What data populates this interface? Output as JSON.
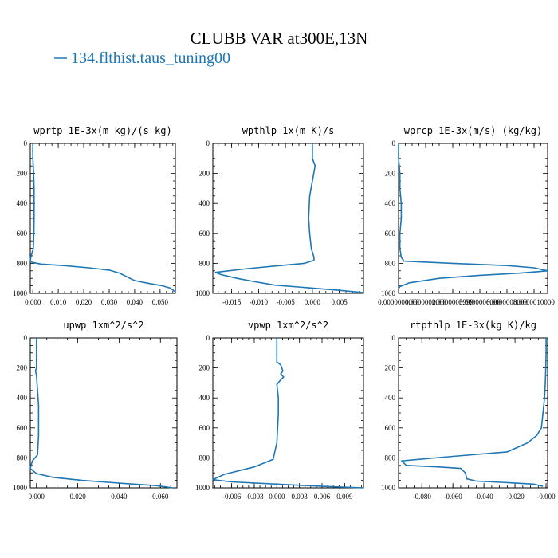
{
  "figure": {
    "title": "CLUBB VAR at300E,13N",
    "legend_label": "134.flthist.taus_tuning00",
    "line_color": "#1f77b4"
  },
  "chart_data": [
    {
      "type": "line",
      "title": "wprtp  1E-3x(m kg)/(s kg)",
      "xlim": [
        -0.001,
        0.056
      ],
      "ylim": [
        1000,
        0
      ],
      "x_ticks": [
        0.0,
        0.01,
        0.02,
        0.03,
        0.04,
        0.05
      ],
      "x_tick_labels": [
        "0.000",
        "0.010",
        "0.020",
        "0.030",
        "0.040",
        "0.050"
      ],
      "y_ticks": [
        0,
        200,
        400,
        600,
        800,
        1000
      ],
      "series": [
        {
          "x": [
            0.0,
            0.0,
            0.0003,
            0.0005,
            0.0005,
            0.0005,
            0.0004,
            0.0002,
            -0.0008,
            -0.001,
            0.003,
            0.012,
            0.022,
            0.03,
            0.034,
            0.037,
            0.04,
            0.046,
            0.051,
            0.054,
            0.056
          ],
          "y": [
            0,
            100,
            200,
            300,
            400,
            500,
            600,
            700,
            760,
            790,
            805,
            815,
            830,
            845,
            865,
            890,
            915,
            935,
            950,
            965,
            990
          ]
        }
      ]
    },
    {
      "type": "line",
      "title": "wpthlp  1x(m K)/s",
      "xlim": [
        -0.0185,
        0.0095
      ],
      "ylim": [
        1000,
        0
      ],
      "x_ticks": [
        -0.015,
        -0.01,
        -0.005,
        0.0,
        0.005
      ],
      "x_tick_labels": [
        "-0.015",
        "-0.010",
        "-0.005",
        "0.000",
        "0.005"
      ],
      "y_ticks": [
        0,
        200,
        400,
        600,
        800,
        1000
      ],
      "series": [
        {
          "x": [
            0.0,
            0.0,
            0.0005,
            0.0,
            -0.0005,
            -0.0007,
            -0.0005,
            -0.0002,
            0.0003,
            0.0003,
            -0.0015,
            -0.006,
            -0.012,
            -0.018,
            -0.017,
            -0.014,
            -0.011,
            -0.007,
            0.0,
            0.005,
            0.0095
          ],
          "y": [
            0,
            100,
            150,
            250,
            350,
            500,
            600,
            700,
            760,
            780,
            800,
            815,
            835,
            860,
            875,
            900,
            920,
            945,
            965,
            980,
            995
          ]
        }
      ]
    },
    {
      "type": "line",
      "title": "wprcp  1E-3x(m/s) (kg/kg)",
      "xlim": [
        0.0,
        1.1e-06
      ],
      "ylim": [
        1000,
        0
      ],
      "x_ticks": [
        0.0,
        2e-07,
        4e-07,
        6e-07,
        8e-07,
        1e-06
      ],
      "x_tick_labels": [
        "0.0000000000",
        "0.0000002000",
        "0.0000003999",
        "0.0000006000",
        "0.0000008000",
        "0.0000010000"
      ],
      "y_ticks": [
        0,
        200,
        400,
        600,
        800,
        1000
      ],
      "series": [
        {
          "x": [
            0.0,
            0.0,
            1e-08,
            1e-08,
            2e-08,
            2e-08,
            1e-08,
            1e-08,
            2e-08,
            4e-08,
            4e-07,
            8e-07,
            1e-06,
            1.1e-06,
            9e-07,
            6e-07,
            3e-07,
            8e-08,
            1e-08,
            0.0
          ],
          "y": [
            0,
            100,
            200,
            300,
            400,
            500,
            600,
            700,
            760,
            785,
            800,
            815,
            830,
            850,
            865,
            880,
            900,
            930,
            955,
            970
          ]
        }
      ]
    },
    {
      "type": "line",
      "title": "upwp  1xm^2/s^2",
      "xlim": [
        -0.003,
        0.068
      ],
      "ylim": [
        1000,
        0
      ],
      "x_ticks": [
        0.0,
        0.02,
        0.04,
        0.06
      ],
      "x_tick_labels": [
        "0.000",
        "0.020",
        "0.040",
        "0.060"
      ],
      "y_ticks": [
        0,
        200,
        400,
        600,
        800,
        1000
      ],
      "series": [
        {
          "x": [
            0.0,
            0.0,
            0.0,
            -0.0005,
            0.0,
            0.0005,
            0.001,
            0.001,
            0.001,
            0.0005,
            -0.002,
            -0.003,
            0.0,
            0.008,
            0.022,
            0.042,
            0.058,
            0.066
          ],
          "y": [
            0,
            100,
            200,
            220,
            250,
            350,
            450,
            550,
            650,
            780,
            820,
            870,
            905,
            930,
            950,
            970,
            985,
            1000
          ]
        }
      ]
    },
    {
      "type": "line",
      "title": "vpwp  1xm^2/s^2",
      "xlim": [
        -0.0085,
        0.0115
      ],
      "ylim": [
        1000,
        0
      ],
      "x_ticks": [
        -0.006,
        -0.003,
        0.0,
        0.003,
        0.006,
        0.009
      ],
      "x_tick_labels": [
        "-0.006",
        "-0.003",
        "0.000",
        "0.003",
        "0.006",
        "0.009"
      ],
      "y_ticks": [
        0,
        200,
        400,
        600,
        800,
        1000
      ],
      "series": [
        {
          "x": [
            0.0,
            0.0,
            0.0,
            0.0005,
            0.0008,
            0.0005,
            0.0009,
            0.0005,
            0.0,
            0.0002,
            0.0002,
            0.0001,
            0.0,
            -0.0005,
            -0.003,
            -0.007,
            -0.0085,
            -0.006,
            0.0,
            0.006,
            0.0115
          ],
          "y": [
            0,
            100,
            160,
            180,
            220,
            240,
            260,
            280,
            310,
            400,
            500,
            600,
            700,
            810,
            860,
            910,
            945,
            960,
            975,
            990,
            1000
          ]
        }
      ]
    },
    {
      "type": "line",
      "title": "rtpthlp  1E-3x(kg K)/kg",
      "xlim": [
        -0.095,
        0.001
      ],
      "ylim": [
        1000,
        0
      ],
      "x_ticks": [
        -0.08,
        -0.06,
        -0.04,
        -0.02,
        0.0
      ],
      "x_tick_labels": [
        "-0.080",
        "-0.060",
        "-0.040",
        "-0.020",
        "-0.000"
      ],
      "y_ticks": [
        0,
        200,
        400,
        600,
        800,
        1000
      ],
      "series": [
        {
          "x": [
            0.0,
            0.0,
            -0.0002,
            -0.0005,
            -0.001,
            -0.002,
            -0.003,
            -0.006,
            -0.012,
            -0.025,
            -0.06,
            -0.093,
            -0.09,
            -0.07,
            -0.055,
            -0.052,
            -0.051,
            -0.045,
            -0.025,
            -0.008,
            -0.002
          ],
          "y": [
            0,
            100,
            200,
            300,
            400,
            500,
            600,
            650,
            700,
            760,
            790,
            820,
            850,
            860,
            870,
            900,
            940,
            955,
            965,
            975,
            990
          ]
        }
      ]
    }
  ]
}
